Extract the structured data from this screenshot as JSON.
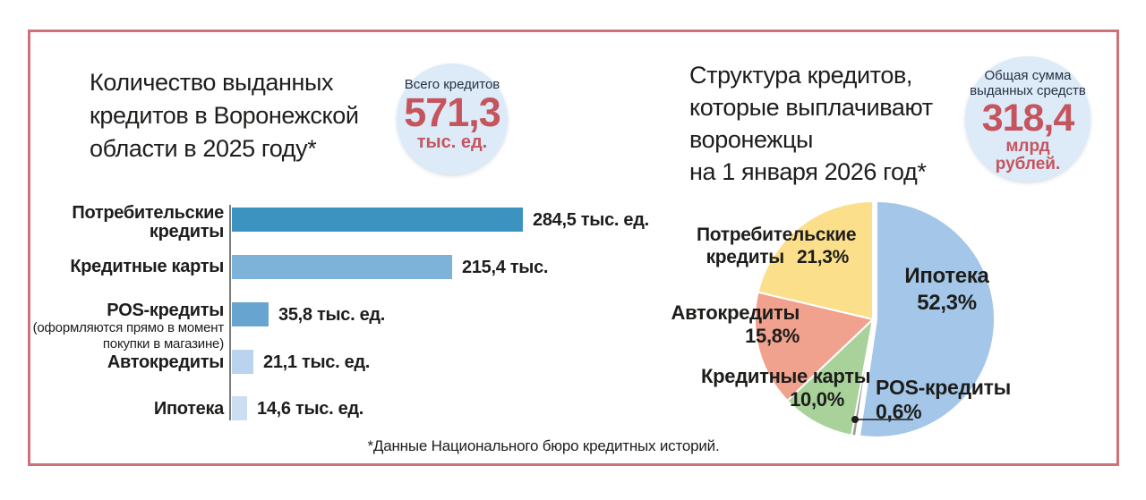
{
  "frame": {
    "border_color": "#d0717a",
    "accent_red": "#c6545e"
  },
  "left": {
    "title_lines": [
      "Количество выданных",
      "кредитов в Воронежской",
      "области в 2025 году*"
    ],
    "badge": {
      "label": "Всего кредитов",
      "value": "571,3",
      "unit": "тыс. ед."
    },
    "bars": [
      {
        "label_lines": [
          "Потребительские",
          "кредиты"
        ],
        "value": 284.5,
        "value_label": "284,5 тыс. ед.",
        "color": "#3c93c0"
      },
      {
        "label_lines": [
          "Кредитные карты"
        ],
        "value": 215.4,
        "value_label": "215,4 тыс.",
        "color": "#7db3d9"
      },
      {
        "label_lines": [
          "POS-кредиты"
        ],
        "sub_lines": [
          "(оформляются прямо в момент",
          "покупки в магазине)"
        ],
        "value": 35.8,
        "value_label": "35,8 тыс. ед.",
        "color": "#68a4d0"
      },
      {
        "label_lines": [
          "Автокредиты"
        ],
        "value": 21.1,
        "value_label": "21,1 тыс. ед.",
        "color": "#b9d4ec"
      },
      {
        "label_lines": [
          "Ипотека"
        ],
        "value": 14.6,
        "value_label": "14,6 тыс. ед.",
        "color": "#cbdef2"
      }
    ]
  },
  "right": {
    "title_lines": [
      "Структура кредитов,",
      "которые выплачивают",
      "воронежцы",
      "на 1 января 2026 год*"
    ],
    "badge": {
      "label_lines": [
        "Общая сумма",
        "выданных средств"
      ],
      "value": "318,4",
      "unit_lines": [
        "млрд",
        "рублей."
      ]
    },
    "pie": {
      "slices": [
        {
          "name": "Ипотека",
          "pct": 52.3,
          "pct_label": "52,3%",
          "color": "#a4c7e9"
        },
        {
          "name": "POS-кредиты",
          "pct": 0.6,
          "pct_label": "0,6%",
          "color": "#9b9b9b"
        },
        {
          "name": "Кредитные карты",
          "pct": 10.0,
          "pct_label": "10,0%",
          "color": "#a9d29b"
        },
        {
          "name": "Автокредиты",
          "pct": 15.8,
          "pct_label": "15,8%",
          "color": "#f1a28f"
        },
        {
          "name": "Потребительские кредиты",
          "pct": 21.3,
          "pct_label": "21,3%",
          "color": "#fbdf8b",
          "name_line1": "Потребительские",
          "name_line2": "кредиты"
        }
      ]
    }
  },
  "footer": "*Данные Национального бюро кредитных историй.",
  "chart_data": [
    {
      "type": "bar",
      "orientation": "horizontal",
      "title": "Количество выданных кредитов в Воронежской области в 2025 году*",
      "total_label": "Всего кредитов 571,3 тыс. ед.",
      "categories": [
        "Потребительские кредиты",
        "Кредитные карты",
        "POS-кредиты (оформляются прямо в момент покупки в магазине)",
        "Автокредиты",
        "Ипотека"
      ],
      "values": [
        284.5,
        215.4,
        35.8,
        21.1,
        14.6
      ],
      "value_labels": [
        "284,5 тыс. ед.",
        "215,4 тыс.",
        "35,8 тыс. ед.",
        "21,1 тыс. ед.",
        "14,6 тыс. ед."
      ],
      "unit": "тыс. ед.",
      "xlim": [
        0,
        300
      ],
      "grid": false,
      "bar_colors": [
        "#3c93c0",
        "#7db3d9",
        "#68a4d0",
        "#b9d4ec",
        "#cbdef2"
      ]
    },
    {
      "type": "pie",
      "title": "Структура кредитов, которые выплачивают воронежцы на 1 января 2026 год*",
      "total_label": "Общая сумма выданных средств 318,4 млрд рублей.",
      "labels": [
        "Ипотека",
        "POS-кредиты",
        "Кредитные карты",
        "Автокредиты",
        "Потребительские кредиты"
      ],
      "values": [
        52.3,
        0.6,
        10.0,
        15.8,
        21.3
      ],
      "colors": [
        "#a4c7e9",
        "#9b9b9b",
        "#a9d29b",
        "#f1a28f",
        "#fbdf8b"
      ],
      "start_angle_deg": 0,
      "direction": "clockwise",
      "exploded_slice": "Ипотека"
    }
  ]
}
